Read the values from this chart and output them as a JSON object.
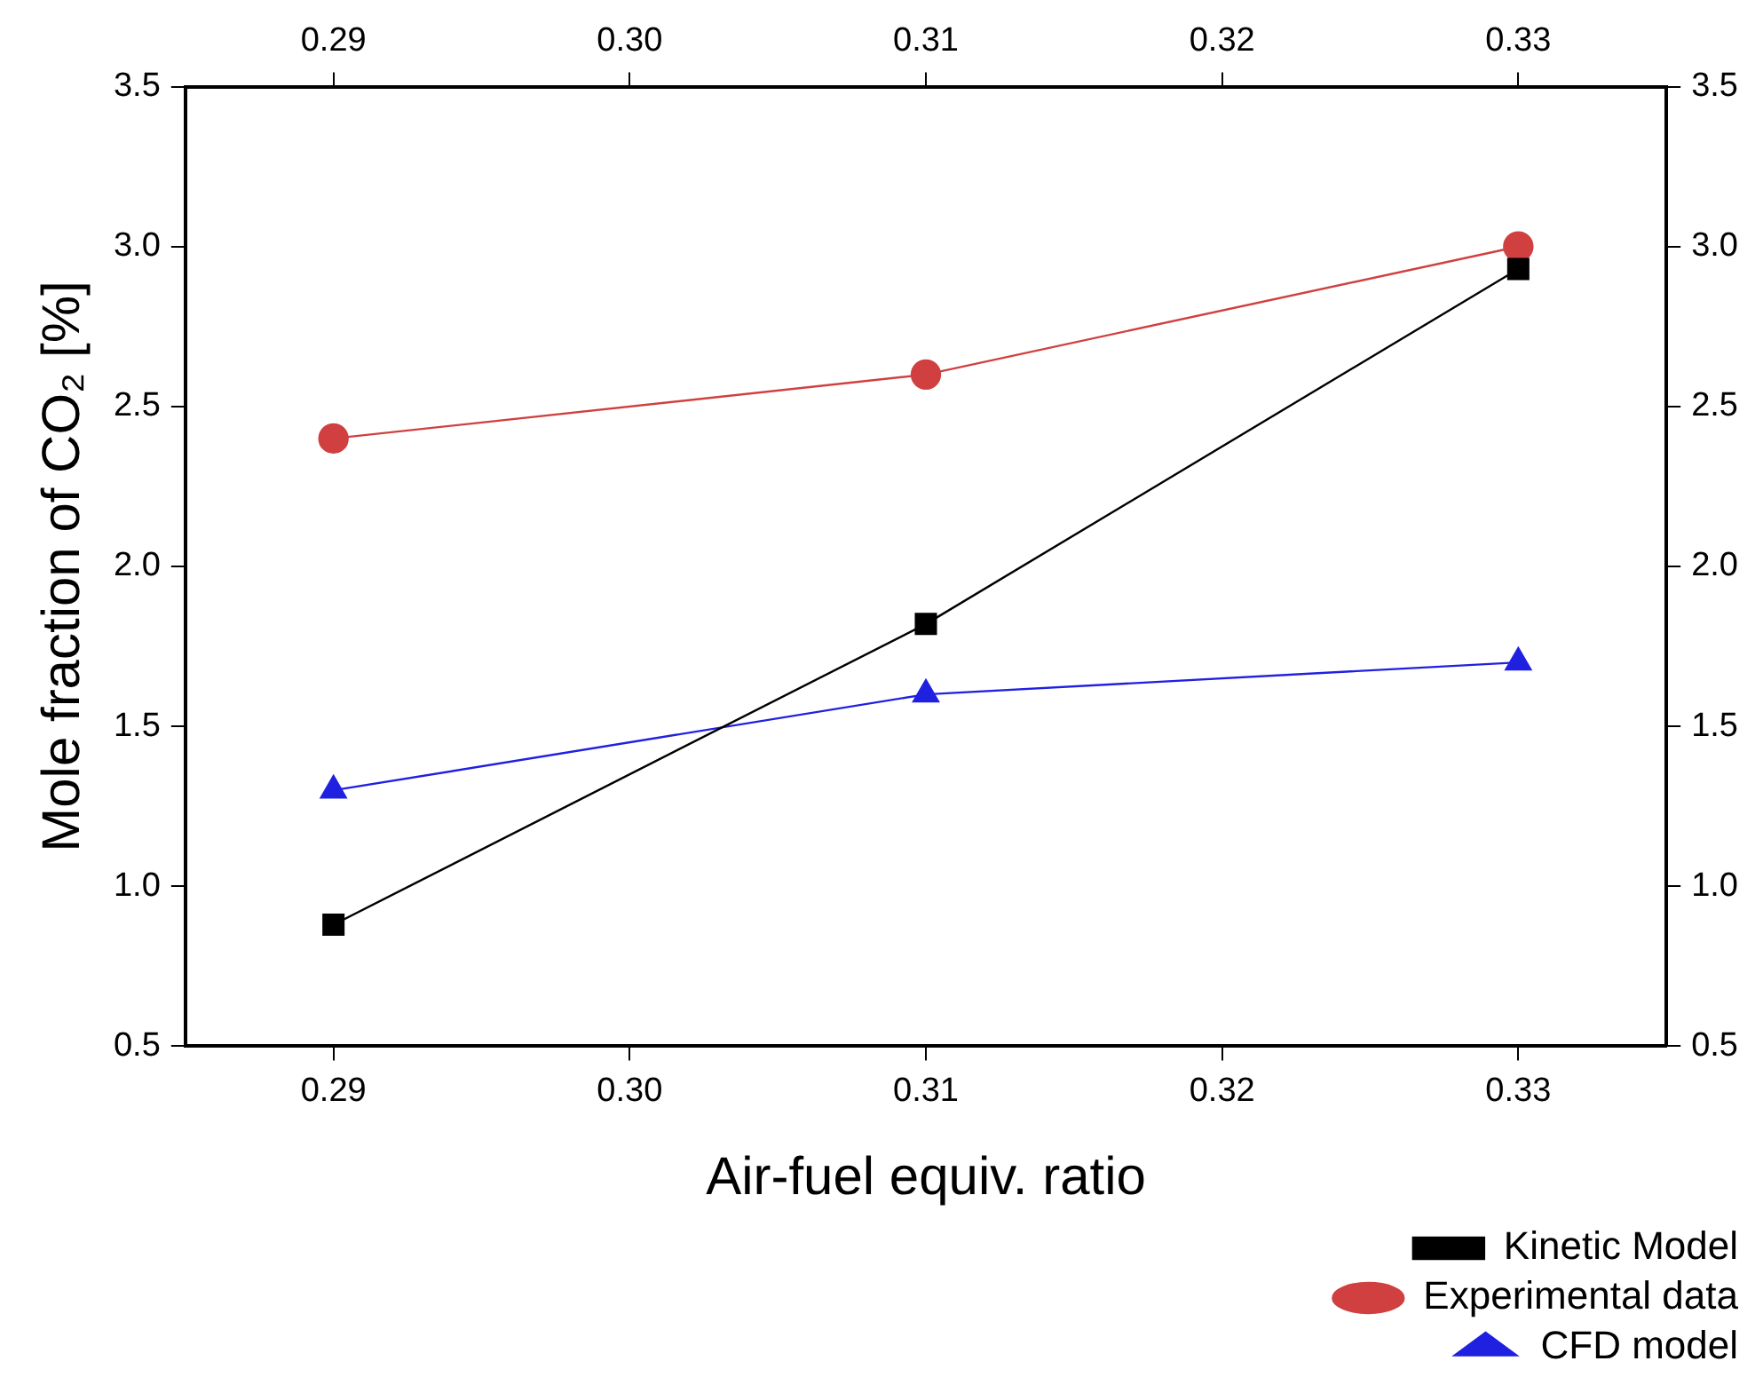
{
  "chart_data": {
    "type": "line",
    "xlabel": "Air-fuel equiv. ratio",
    "ylabel": "Mole fraction of CO₂ [%]",
    "x": [
      0.29,
      0.31,
      0.33
    ],
    "series": [
      {
        "name": "Kinetic Model",
        "color": "#000000",
        "marker": "square",
        "values": [
          0.88,
          1.82,
          2.93
        ]
      },
      {
        "name": "Experimental data",
        "color": "#d04040",
        "marker": "circle",
        "values": [
          2.4,
          2.6,
          3.0
        ]
      },
      {
        "name": "CFD model",
        "color": "#2020e0",
        "marker": "triangle",
        "values": [
          1.3,
          1.6,
          1.7
        ]
      }
    ],
    "xlim": [
      0.285,
      0.335
    ],
    "xticks": [
      0.29,
      {
        "value": 0.3,
        "label": "0.30"
      },
      0.31,
      0.32,
      0.33
    ],
    "x2lim": [
      0.285,
      0.335
    ],
    "x2ticks": [
      0.29,
      {
        "value": 0.3,
        "label": "0.30"
      },
      0.31,
      0.32,
      0.33
    ],
    "ylim": [
      0.5,
      3.5
    ],
    "yticks": [
      0.5,
      {
        "value": 1,
        "label": "1.0"
      },
      1.5,
      {
        "value": 2,
        "label": "2.0"
      },
      2.5,
      {
        "value": 3,
        "label": "3.0"
      },
      3.5
    ],
    "y2lim": [
      0.5,
      3.5
    ],
    "y2ticks": [
      0.5,
      {
        "value": 1,
        "label": "1.0"
      },
      1.5,
      {
        "value": 2,
        "label": "2.0"
      },
      2.5,
      {
        "value": 3,
        "label": "3.0"
      },
      3.5
    ],
    "grid": false,
    "legend": "bottom right",
    "line_style": "solid"
  }
}
